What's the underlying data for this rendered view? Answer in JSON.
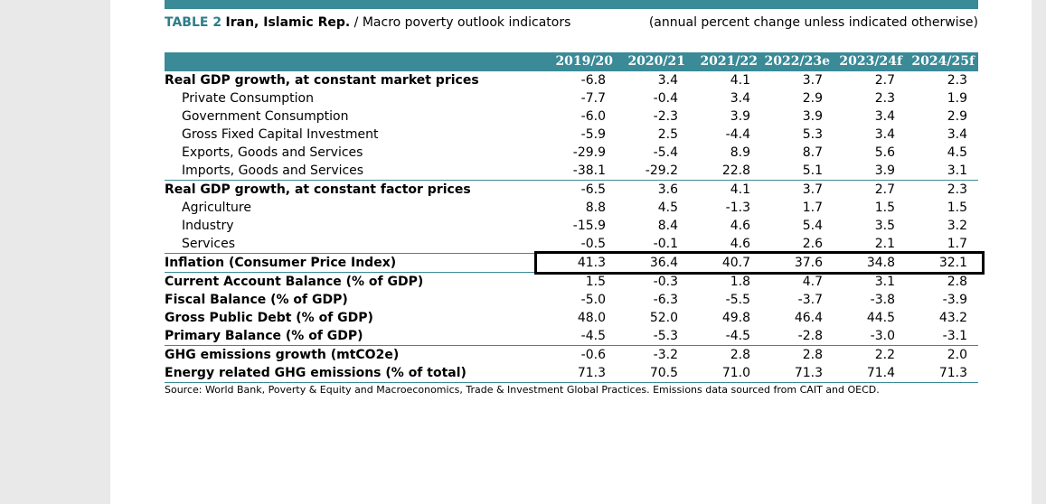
{
  "caption": {
    "table_label": "TABLE 2",
    "country": "Iran, Islamic Rep.",
    "subtitle": " / Macro poverty outlook indicators",
    "note": "(annual percent change unless indicated otherwise)"
  },
  "columns": [
    "2019/20",
    "2020/21",
    "2021/22",
    "2022/23e",
    "2023/24f",
    "2024/25f"
  ],
  "rows": [
    {
      "label": "Real GDP growth, at constant market prices",
      "values": [
        "-6.8",
        "3.4",
        "4.1",
        "3.7",
        "2.7",
        "2.3"
      ]
    },
    {
      "label": "Private Consumption",
      "values": [
        "-7.7",
        "-0.4",
        "3.4",
        "2.9",
        "2.3",
        "1.9"
      ]
    },
    {
      "label": "Government Consumption",
      "values": [
        "-6.0",
        "-2.3",
        "3.9",
        "3.9",
        "3.4",
        "2.9"
      ]
    },
    {
      "label": "Gross Fixed Capital Investment",
      "values": [
        "-5.9",
        "2.5",
        "-4.4",
        "5.3",
        "3.4",
        "3.4"
      ]
    },
    {
      "label": "Exports, Goods and Services",
      "values": [
        "-29.9",
        "-5.4",
        "8.9",
        "8.7",
        "5.6",
        "4.5"
      ]
    },
    {
      "label": "Imports, Goods and Services",
      "values": [
        "-38.1",
        "-29.2",
        "22.8",
        "5.1",
        "3.9",
        "3.1"
      ]
    },
    {
      "label": "Real GDP growth, at constant factor prices",
      "values": [
        "-6.5",
        "3.6",
        "4.1",
        "3.7",
        "2.7",
        "2.3"
      ]
    },
    {
      "label": "Agriculture",
      "values": [
        "8.8",
        "4.5",
        "-1.3",
        "1.7",
        "1.5",
        "1.5"
      ]
    },
    {
      "label": "Industry",
      "values": [
        "-15.9",
        "8.4",
        "4.6",
        "5.4",
        "3.5",
        "3.2"
      ]
    },
    {
      "label": "Services",
      "values": [
        "-0.5",
        "-0.1",
        "4.6",
        "2.6",
        "2.1",
        "1.7"
      ]
    },
    {
      "label": "Inflation (Consumer Price Index)",
      "values": [
        "41.3",
        "36.4",
        "40.7",
        "37.6",
        "34.8",
        "32.1"
      ]
    },
    {
      "label": "Current Account Balance (% of GDP)",
      "values": [
        "1.5",
        "-0.3",
        "1.8",
        "4.7",
        "3.1",
        "2.8"
      ]
    },
    {
      "label": "Fiscal Balance (% of GDP)",
      "values": [
        "-5.0",
        "-6.3",
        "-5.5",
        "-3.7",
        "-3.8",
        "-3.9"
      ]
    },
    {
      "label": "Gross Public Debt (% of GDP)",
      "values": [
        "48.0",
        "52.0",
        "49.8",
        "46.4",
        "44.5",
        "43.2"
      ]
    },
    {
      "label": "Primary Balance (% of GDP)",
      "values": [
        "-4.5",
        "-5.3",
        "-4.5",
        "-2.8",
        "-3.0",
        "-3.1"
      ]
    },
    {
      "label": "GHG emissions growth (mtCO2e)",
      "values": [
        "-0.6",
        "-3.2",
        "2.8",
        "2.8",
        "2.2",
        "2.0"
      ]
    },
    {
      "label": "Energy related GHG emissions (% of total)",
      "values": [
        "71.3",
        "70.5",
        "71.0",
        "71.3",
        "71.4",
        "71.3"
      ]
    }
  ],
  "source": "Source: World Bank, Poverty & Equity and Macroeconomics, Trade & Investment Global Practices. Emissions data sourced from CAIT and OECD."
}
